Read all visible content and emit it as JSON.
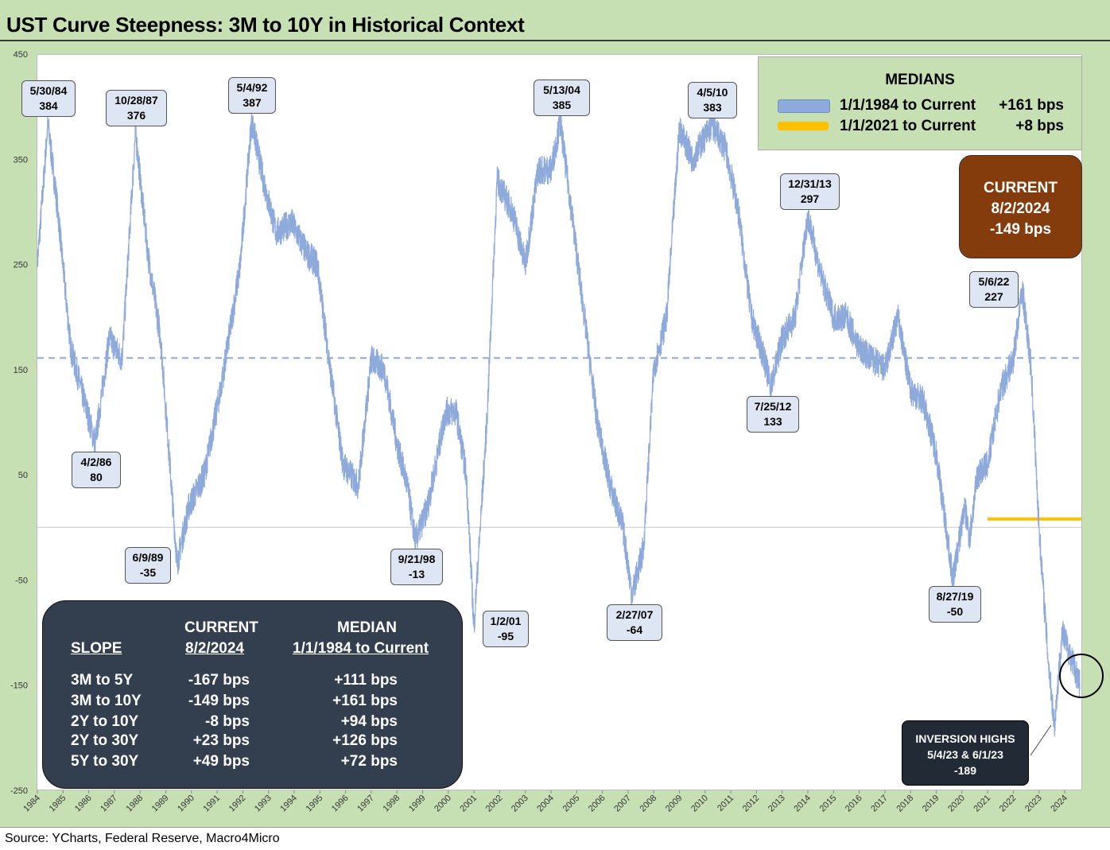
{
  "title": "UST Curve Steepness: 3M to 10Y in Historical Context",
  "source": "Source: YCharts, Federal Reserve, Macro4Micro",
  "colors": {
    "series": "#8eaadb",
    "median_all": "#8eaadb",
    "median_recent": "#ffc000",
    "current_box": "#843c0c",
    "table_bg": "#333f4f"
  },
  "chart_data": {
    "type": "line",
    "title": "UST Curve Steepness: 3M to 10Y in Historical Context",
    "xlabel": "",
    "ylabel": "",
    "ylim": [
      -250,
      450
    ],
    "yticks": [
      "450",
      "350",
      "250",
      "150",
      "50",
      "-50",
      "-150",
      "-250"
    ],
    "xticks": [
      "1984",
      "1985",
      "1986",
      "1987",
      "1988",
      "1989",
      "1990",
      "1991",
      "1992",
      "1993",
      "1994",
      "1995",
      "1996",
      "1997",
      "1998",
      "1999",
      "2000",
      "2001",
      "2002",
      "2003",
      "2004",
      "2005",
      "2006",
      "2007",
      "2008",
      "2009",
      "2010",
      "2011",
      "2012",
      "2013",
      "2014",
      "2015",
      "2016",
      "2017",
      "2018",
      "2019",
      "2020",
      "2021",
      "2022",
      "2023",
      "2024"
    ],
    "grid": false,
    "series": [
      {
        "x": [
          1984.0,
          1984.41,
          1984.8,
          1985.3,
          1986.25,
          1986.8,
          1987.3,
          1987.82,
          1988.3,
          1988.8,
          1989.44,
          1989.9,
          1990.5,
          1991.2,
          1991.9,
          1992.34,
          1992.8,
          1993.3,
          1993.9,
          1994.5,
          1994.9,
          1995.4,
          1995.9,
          1996.5,
          1997.0,
          1997.5,
          1998.0,
          1998.4,
          1998.72,
          1999.2,
          1999.9,
          2000.3,
          2000.7,
          2001.0,
          2001.5,
          2001.9,
          2002.5,
          2003.0,
          2003.5,
          2004.0,
          2004.36,
          2004.8,
          2005.3,
          2005.8,
          2006.3,
          2006.8,
          2007.15,
          2007.6,
          2008.0,
          2008.5,
          2009.0,
          2009.5,
          2010.26,
          2010.8,
          2011.3,
          2011.8,
          2012.3,
          2012.56,
          2013.0,
          2013.5,
          2014.0,
          2014.5,
          2015.0,
          2015.5,
          2016.0,
          2016.5,
          2017.0,
          2017.5,
          2018.0,
          2018.5,
          2019.0,
          2019.65,
          2020.1,
          2020.3,
          2020.6,
          2021.0,
          2021.5,
          2022.0,
          2022.35,
          2022.7,
          2023.0,
          2023.34,
          2023.6,
          2023.9,
          2024.2,
          2024.59
        ],
        "y": [
          250,
          384,
          300,
          170,
          80,
          180,
          160,
          376,
          260,
          180,
          -35,
          20,
          50,
          140,
          250,
          387,
          330,
          280,
          290,
          260,
          250,
          150,
          60,
          40,
          160,
          150,
          80,
          40,
          -13,
          20,
          110,
          110,
          50,
          -95,
          100,
          330,
          300,
          250,
          340,
          340,
          385,
          300,
          200,
          100,
          40,
          0,
          -64,
          -20,
          150,
          200,
          380,
          350,
          383,
          360,
          300,
          200,
          160,
          133,
          180,
          200,
          297,
          240,
          200,
          200,
          170,
          160,
          150,
          200,
          130,
          120,
          70,
          -50,
          20,
          -10,
          50,
          60,
          130,
          160,
          227,
          150,
          0,
          -120,
          -189,
          -100,
          -120,
          -149
        ]
      }
    ],
    "medians": [
      {
        "name": "1/1/1984 to Current",
        "value_label": "+161 bps",
        "value": 161,
        "x_start": 1984.0,
        "x_end": 2024.59
      },
      {
        "name": "1/1/2021 to Current",
        "value_label": "+8 bps",
        "value": 8,
        "x_start": 2021.0,
        "x_end": 2024.59
      }
    ],
    "annotations": [
      {
        "date": "5/30/84",
        "value": "384"
      },
      {
        "date": "10/28/87",
        "value": "376"
      },
      {
        "date": "5/4/92",
        "value": "387"
      },
      {
        "date": "5/13/04",
        "value": "385"
      },
      {
        "date": "4/5/10",
        "value": "383"
      },
      {
        "date": "12/31/13",
        "value": "297"
      },
      {
        "date": "5/6/22",
        "value": "227"
      },
      {
        "date": "4/2/86",
        "value": "80"
      },
      {
        "date": "7/25/12",
        "value": "133"
      },
      {
        "date": "6/9/89",
        "value": "-35"
      },
      {
        "date": "9/21/98",
        "value": "-13"
      },
      {
        "date": "1/2/01",
        "value": "-95"
      },
      {
        "date": "2/27/07",
        "value": "-64"
      },
      {
        "date": "8/27/19",
        "value": "-50"
      }
    ]
  },
  "medians_box": {
    "title": "MEDIANS",
    "rows": [
      {
        "label": "1/1/1984 to Current",
        "value": "+161 bps"
      },
      {
        "label": "1/1/2021 to Current",
        "value": "+8 bps"
      }
    ]
  },
  "current_box": {
    "line1": "CURRENT",
    "line2": "8/2/2024",
    "line3": "-149 bps"
  },
  "inversion_box": {
    "line1": "INVERSION HIGHS",
    "line2": "5/4/23 & 6/1/23",
    "line3": "-189"
  },
  "slope_table": {
    "header_current": "CURRENT",
    "header_median": "MEDIAN",
    "col_slope": "SLOPE",
    "col_current_date": "8/2/2024",
    "col_median_range": "1/1/1984 to Current",
    "rows": [
      {
        "slope": "3M to 5Y",
        "current": "-167 bps",
        "median": "+111 bps"
      },
      {
        "slope": "3M to 10Y",
        "current": "-149 bps",
        "median": "+161 bps"
      },
      {
        "slope": "2Y to 10Y",
        "current": "-8 bps",
        "median": "+94 bps"
      },
      {
        "slope": "2Y to 30Y",
        "current": "+23 bps",
        "median": "+126 bps"
      },
      {
        "slope": "5Y to 30Y",
        "current": "+49 bps",
        "median": "+72 bps"
      }
    ]
  }
}
